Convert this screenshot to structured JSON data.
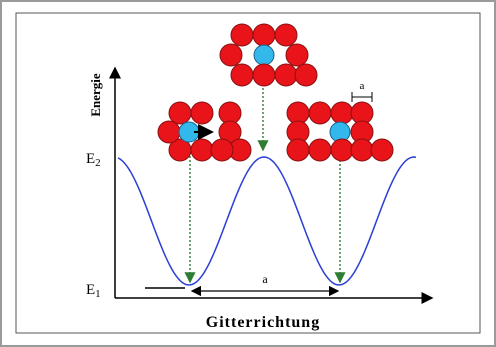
{
  "labels": {
    "y_axis": "Energie",
    "e2": {
      "letter": "E",
      "sub": "2"
    },
    "e1": {
      "letter": "E",
      "sub": "1"
    },
    "lattice_constant_top": "a",
    "lattice_constant_bottom": "a",
    "x_axis": "Gitterrichtung"
  }
}
